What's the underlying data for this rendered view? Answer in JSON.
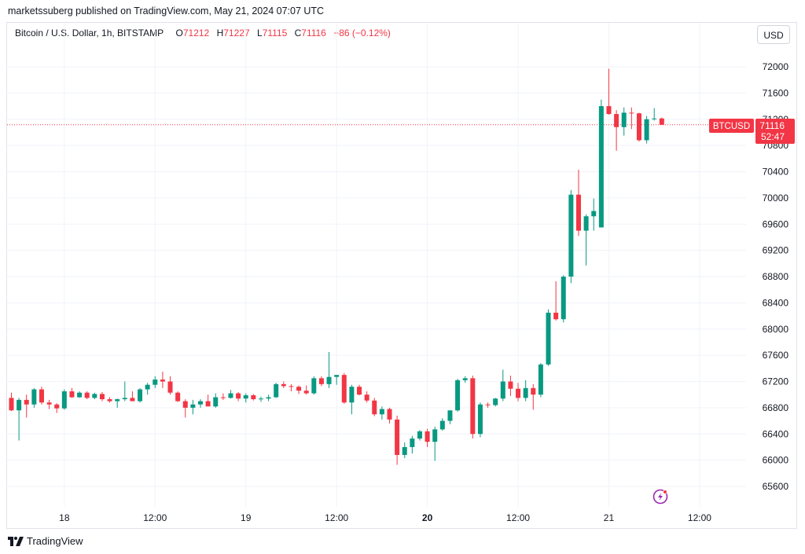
{
  "header": {
    "publisher_text": "marketssuberg published on TradingView.com, May 21, 2024 07:07 UTC"
  },
  "legend": {
    "symbol": "Bitcoin / U.S. Dollar, 1h, BITSTAMP",
    "o_label": "O",
    "o_value": "71212",
    "h_label": "H",
    "h_value": "71227",
    "l_label": "L",
    "l_value": "71115",
    "c_label": "C",
    "c_value": "71116",
    "change": "−86 (−0.12%)"
  },
  "toolbar": {
    "currency_label": "USD"
  },
  "price_tag": {
    "ticker": "BTCUSD",
    "price": "71116",
    "countdown": "52:47"
  },
  "footer": {
    "brand": "TradingView"
  },
  "colors": {
    "up": "#089981",
    "down": "#f23645",
    "grid": "#f0f3fa",
    "text": "#131722",
    "alert": "#9c27b0"
  },
  "chart_data": {
    "type": "candlestick",
    "y_ticks": [
      65600,
      66000,
      66400,
      66800,
      67200,
      67600,
      68000,
      68400,
      68800,
      69200,
      69600,
      70000,
      70400,
      70800,
      71200,
      71600,
      72000
    ],
    "x_ticks": [
      {
        "label": "18",
        "index": 7,
        "bold": false
      },
      {
        "label": "12:00",
        "index": 19,
        "bold": false
      },
      {
        "label": "19",
        "index": 31,
        "bold": false
      },
      {
        "label": "12:00",
        "index": 43,
        "bold": false
      },
      {
        "label": "20",
        "index": 55,
        "bold": true
      },
      {
        "label": "12:00",
        "index": 67,
        "bold": false
      },
      {
        "label": "21",
        "index": 79,
        "bold": false
      },
      {
        "label": "12:00",
        "index": 91,
        "bold": false
      }
    ],
    "last_price": 71116,
    "candles": [
      [
        66950,
        67030,
        66750,
        66760
      ],
      [
        66760,
        66950,
        66300,
        66920
      ],
      [
        66920,
        67000,
        66650,
        66850
      ],
      [
        66850,
        67100,
        66800,
        67080
      ],
      [
        67080,
        67120,
        66850,
        66880
      ],
      [
        66880,
        66920,
        66780,
        66850
      ],
      [
        66850,
        66870,
        66720,
        66790
      ],
      [
        66790,
        67080,
        66770,
        67050
      ],
      [
        67050,
        67100,
        66950,
        66960
      ],
      [
        66960,
        67050,
        66950,
        67030
      ],
      [
        67030,
        67050,
        66930,
        66950
      ],
      [
        66950,
        67030,
        66930,
        67010
      ],
      [
        67010,
        67040,
        66900,
        66930
      ],
      [
        66930,
        66960,
        66880,
        66900
      ],
      [
        66900,
        66940,
        66800,
        66930
      ],
      [
        66930,
        67200,
        66900,
        66950
      ],
      [
        66950,
        67050,
        66900,
        66900
      ],
      [
        66900,
        67100,
        66880,
        67080
      ],
      [
        67080,
        67180,
        67000,
        67150
      ],
      [
        67150,
        67280,
        67100,
        67230
      ],
      [
        67230,
        67350,
        67100,
        67200
      ],
      [
        67200,
        67280,
        67000,
        67030
      ],
      [
        67030,
        67050,
        66890,
        66900
      ],
      [
        66900,
        66930,
        66650,
        66800
      ],
      [
        66800,
        66920,
        66700,
        66850
      ],
      [
        66850,
        66930,
        66800,
        66900
      ],
      [
        66900,
        67000,
        66850,
        66820
      ],
      [
        66820,
        67020,
        66800,
        66960
      ],
      [
        66960,
        67020,
        66920,
        66950
      ],
      [
        66950,
        67070,
        66940,
        67020
      ],
      [
        67020,
        67040,
        66900,
        66940
      ],
      [
        66940,
        67020,
        66880,
        66990
      ],
      [
        66990,
        67010,
        66910,
        66930
      ],
      [
        66930,
        66970,
        66890,
        66940
      ],
      [
        66940,
        67000,
        66900,
        66960
      ],
      [
        66960,
        67180,
        66950,
        67160
      ],
      [
        67160,
        67200,
        67100,
        67130
      ],
      [
        67130,
        67160,
        67050,
        67120
      ],
      [
        67120,
        67140,
        67010,
        67060
      ],
      [
        67060,
        67140,
        67000,
        67020
      ],
      [
        67020,
        67280,
        67000,
        67250
      ],
      [
        67250,
        67280,
        67130,
        67160
      ],
      [
        67160,
        67650,
        67100,
        67270
      ],
      [
        67270,
        67300,
        67150,
        67300
      ],
      [
        67300,
        67330,
        66860,
        66880
      ],
      [
        66880,
        67150,
        66700,
        67120
      ],
      [
        67120,
        67150,
        66990,
        67000
      ],
      [
        67000,
        67050,
        66880,
        66910
      ],
      [
        66910,
        66950,
        66670,
        66700
      ],
      [
        66700,
        66820,
        66620,
        66780
      ],
      [
        66780,
        66800,
        66560,
        66620
      ],
      [
        66620,
        66680,
        65930,
        66080
      ],
      [
        66080,
        66270,
        66030,
        66200
      ],
      [
        66200,
        66370,
        66100,
        66330
      ],
      [
        66330,
        66460,
        66300,
        66440
      ],
      [
        66440,
        66480,
        66200,
        66280
      ],
      [
        66280,
        66510,
        65990,
        66470
      ],
      [
        66470,
        66640,
        66450,
        66600
      ],
      [
        66600,
        66750,
        66550,
        66760
      ],
      [
        66760,
        67240,
        66740,
        67220
      ],
      [
        67220,
        67280,
        67180,
        67250
      ],
      [
        67250,
        67290,
        66330,
        66400
      ],
      [
        66400,
        66880,
        66350,
        66850
      ],
      [
        66850,
        66880,
        66800,
        66840
      ],
      [
        66840,
        66950,
        66820,
        66940
      ],
      [
        66940,
        67380,
        66900,
        67200
      ],
      [
        67200,
        67290,
        66980,
        67090
      ],
      [
        67090,
        67180,
        66900,
        66950
      ],
      [
        66950,
        67220,
        66900,
        67100
      ],
      [
        67100,
        67160,
        66770,
        67000
      ],
      [
        67000,
        67480,
        66960,
        67460
      ],
      [
        67460,
        68300,
        67440,
        68250
      ],
      [
        68250,
        68730,
        68130,
        68150
      ],
      [
        68150,
        68820,
        68100,
        68800
      ],
      [
        68800,
        70120,
        68700,
        70050
      ],
      [
        70050,
        70430,
        69420,
        69500
      ],
      [
        69500,
        69750,
        68970,
        69720
      ],
      [
        69720,
        69990,
        69500,
        69800
      ],
      [
        69550,
        71500,
        69550,
        71400
      ],
      [
        71400,
        71970,
        71270,
        71280
      ],
      [
        71280,
        71340,
        70720,
        71080
      ],
      [
        71080,
        71380,
        70950,
        71300
      ],
      [
        71300,
        71380,
        71050,
        71290
      ],
      [
        71290,
        71300,
        70860,
        70880
      ],
      [
        70880,
        71250,
        70830,
        71200
      ],
      [
        71200,
        71370,
        71180,
        71212
      ],
      [
        71212,
        71227,
        71115,
        71116
      ]
    ]
  }
}
